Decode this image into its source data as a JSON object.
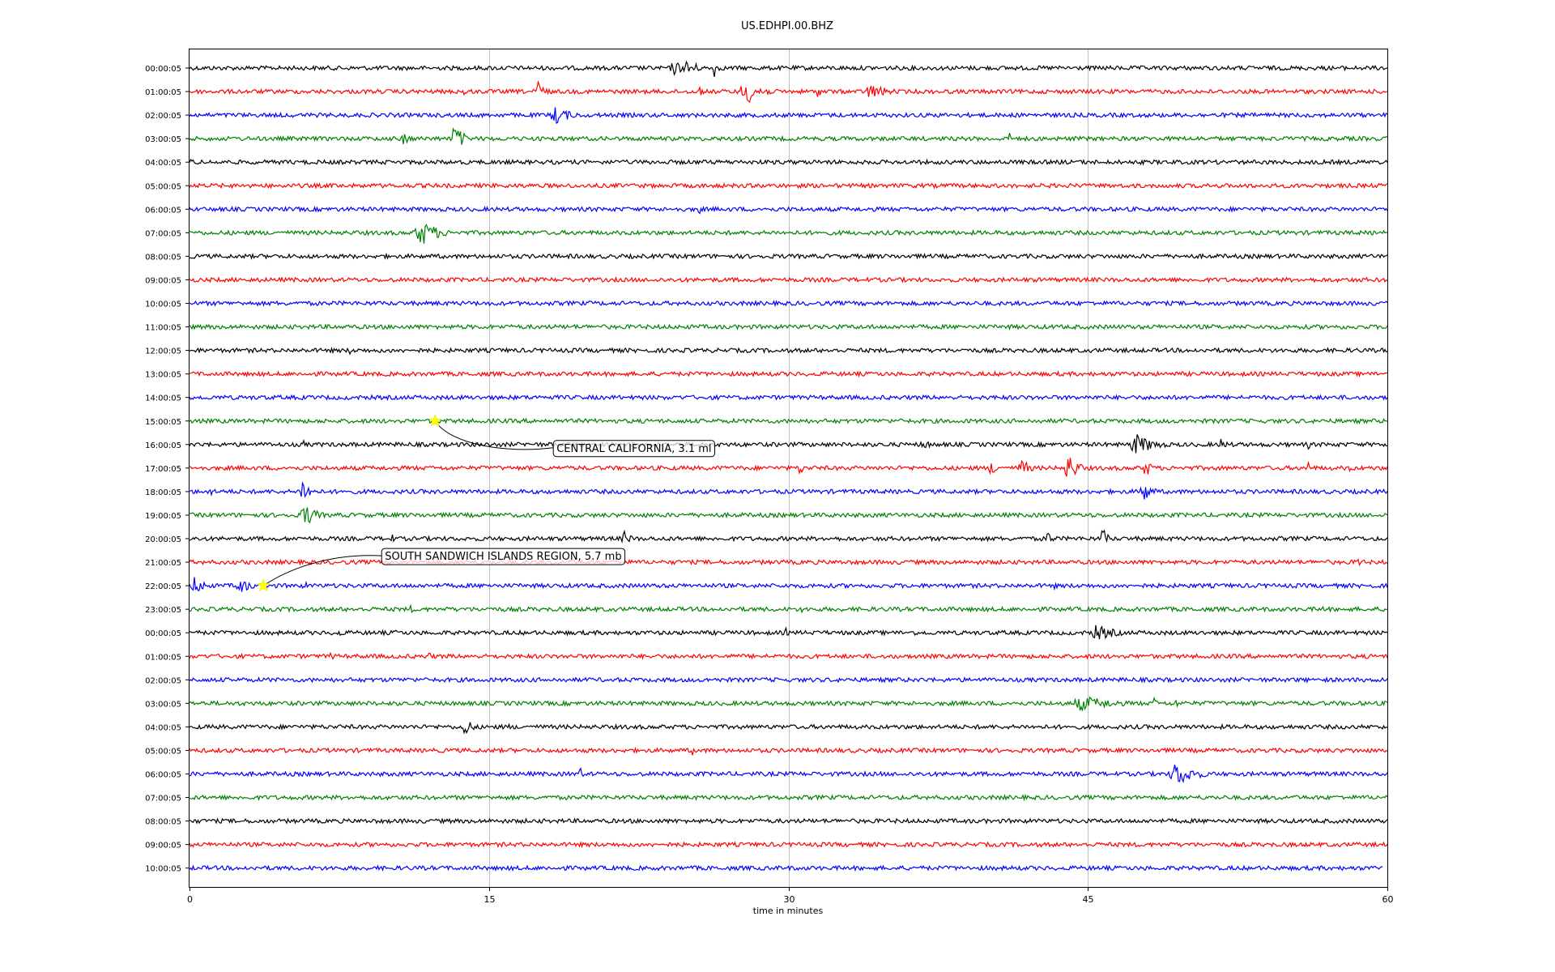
{
  "chart_data": {
    "type": "line",
    "title": "US.EDHPI.00.BHZ",
    "xlabel": "time in minutes",
    "ylabel": "",
    "xlim": [
      0,
      60
    ],
    "xticks": [
      0,
      15,
      30,
      45,
      60
    ],
    "xtick_labels": [
      "0",
      "15",
      "30",
      "45",
      "60"
    ],
    "grid": "vertical at x ticks",
    "trace_colors": [
      "#000000",
      "#ff0000",
      "#0000ff",
      "#008000"
    ],
    "row_labels": [
      "00:00:05",
      "01:00:05",
      "02:00:05",
      "03:00:05",
      "04:00:05",
      "05:00:05",
      "06:00:05",
      "07:00:05",
      "08:00:05",
      "09:00:05",
      "10:00:05",
      "11:00:05",
      "12:00:05",
      "13:00:05",
      "14:00:05",
      "15:00:05",
      "16:00:05",
      "17:00:05",
      "18:00:05",
      "19:00:05",
      "20:00:05",
      "21:00:05",
      "22:00:05",
      "23:00:05",
      "00:00:05",
      "01:00:05",
      "02:00:05",
      "03:00:05",
      "04:00:05",
      "05:00:05",
      "06:00:05",
      "07:00:05",
      "08:00:05",
      "09:00:05",
      "10:00:05"
    ],
    "annotations": [
      {
        "text": "CENTRAL CALIFORNIA, 3.1 ml",
        "row": 15,
        "minute": 12.3
      },
      {
        "text": "SOUTH SANDWICH ISLANDS REGION, 5.7 mb",
        "row": 22,
        "minute": 3.7
      }
    ],
    "events": [
      [
        0,
        24.0,
        1.5,
        10
      ],
      [
        0,
        24.8,
        1.0,
        16
      ],
      [
        0,
        26.2,
        0.6,
        12
      ],
      [
        1,
        13.7,
        0.4,
        8
      ],
      [
        1,
        17.3,
        0.8,
        18
      ],
      [
        1,
        25.5,
        0.3,
        10
      ],
      [
        1,
        27.5,
        2.0,
        18
      ],
      [
        1,
        31.3,
        0.8,
        8
      ],
      [
        1,
        33.7,
        2.5,
        10
      ],
      [
        2,
        18.0,
        2.0,
        12
      ],
      [
        3,
        10.6,
        0.8,
        10
      ],
      [
        3,
        13.1,
        1.0,
        22
      ],
      [
        3,
        41.0,
        0.4,
        8
      ],
      [
        4,
        0.0,
        0.5,
        6
      ],
      [
        4,
        45.1,
        0.3,
        5
      ],
      [
        6,
        25.4,
        0.5,
        8
      ],
      [
        7,
        11.2,
        2.2,
        18
      ],
      [
        12,
        8.0,
        0.2,
        6
      ],
      [
        16,
        5.7,
        0.2,
        8
      ],
      [
        16,
        36.5,
        1.5,
        6
      ],
      [
        16,
        47.0,
        2.5,
        14
      ],
      [
        16,
        51.5,
        1.0,
        8
      ],
      [
        16,
        56.0,
        0.3,
        6
      ],
      [
        17,
        30.5,
        0.4,
        12
      ],
      [
        17,
        40.0,
        1.0,
        10
      ],
      [
        17,
        41.5,
        1.0,
        14
      ],
      [
        17,
        43.8,
        1.2,
        20
      ],
      [
        17,
        47.7,
        1.0,
        12
      ],
      [
        17,
        51.5,
        0.5,
        6
      ],
      [
        17,
        56.0,
        0.3,
        10
      ],
      [
        17,
        58.0,
        0.5,
        6
      ],
      [
        18,
        1.0,
        0.3,
        10
      ],
      [
        18,
        5.5,
        1.0,
        18
      ],
      [
        18,
        47.5,
        1.2,
        16
      ],
      [
        19,
        5.5,
        1.5,
        16
      ],
      [
        19,
        44.8,
        0.3,
        8
      ],
      [
        20,
        10.0,
        0.5,
        8
      ],
      [
        20,
        21.6,
        1.0,
        10
      ],
      [
        20,
        42.9,
        0.5,
        14
      ],
      [
        20,
        45.6,
        0.8,
        14
      ],
      [
        21,
        58.5,
        0.3,
        12
      ],
      [
        22,
        0.0,
        1.5,
        12
      ],
      [
        22,
        2.2,
        1.8,
        10
      ],
      [
        22,
        5.6,
        0.8,
        6
      ],
      [
        22,
        43.3,
        0.2,
        5
      ],
      [
        23,
        11.0,
        0.4,
        6
      ],
      [
        23,
        30.6,
        0.3,
        6
      ],
      [
        23,
        56.7,
        0.3,
        6
      ],
      [
        24,
        1.0,
        0.4,
        6
      ],
      [
        24,
        7.2,
        1.2,
        6
      ],
      [
        24,
        10.2,
        0.4,
        6
      ],
      [
        24,
        29.8,
        0.3,
        8
      ],
      [
        24,
        36.2,
        0.3,
        6
      ],
      [
        24,
        45.0,
        2.8,
        10
      ],
      [
        25,
        3.3,
        0.3,
        6
      ],
      [
        25,
        7.0,
        0.3,
        10
      ],
      [
        25,
        11.8,
        0.5,
        10
      ],
      [
        26,
        55.5,
        0.2,
        6
      ],
      [
        27,
        44.0,
        4.5,
        10
      ],
      [
        27,
        48.3,
        0.2,
        14
      ],
      [
        27,
        49.3,
        0.6,
        6
      ],
      [
        28,
        13.6,
        1.0,
        14
      ],
      [
        28,
        15.8,
        0.6,
        6
      ],
      [
        29,
        25.1,
        0.6,
        6
      ],
      [
        29,
        58.2,
        0.5,
        4
      ],
      [
        30,
        19.5,
        0.3,
        12
      ],
      [
        30,
        49.0,
        2.5,
        16
      ]
    ]
  }
}
